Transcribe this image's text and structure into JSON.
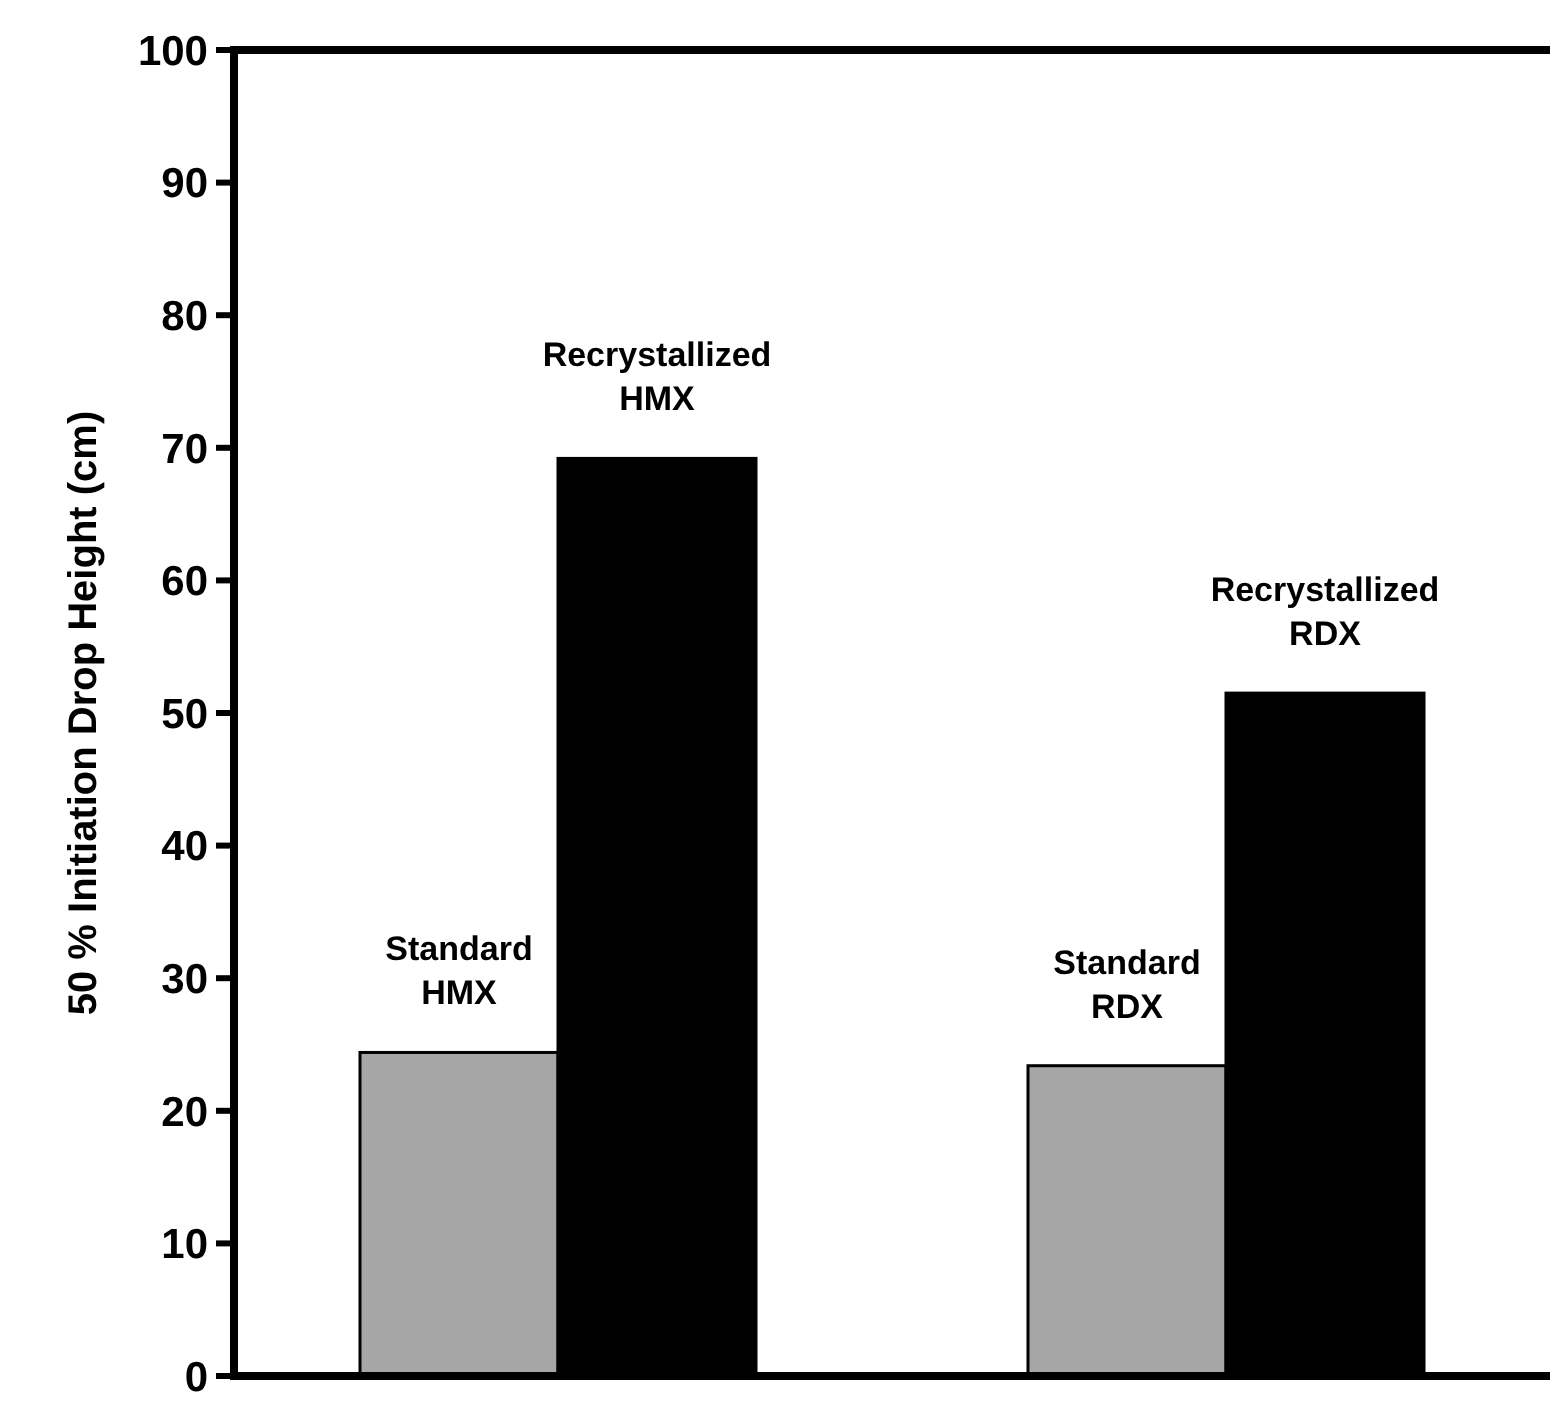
{
  "chart_data": {
    "type": "bar",
    "categories": [
      null,
      null,
      null,
      null
    ],
    "values": [
      24.4,
      69.2,
      23.4,
      51.5
    ],
    "colors": [
      "#a6a6a6",
      "#000000",
      "#a6a6a6",
      "#000000"
    ],
    "ylabel": "50 % Initiation Drop Height (cm)",
    "ylim": [
      0,
      100
    ],
    "yticks": [
      0,
      10,
      20,
      30,
      40,
      50,
      60,
      70,
      80,
      90,
      100
    ],
    "grid": false,
    "annotations": [
      "Standard HMX",
      "Recrystallized HMX",
      "Standard RDX",
      "Recrystallized RDX"
    ]
  }
}
